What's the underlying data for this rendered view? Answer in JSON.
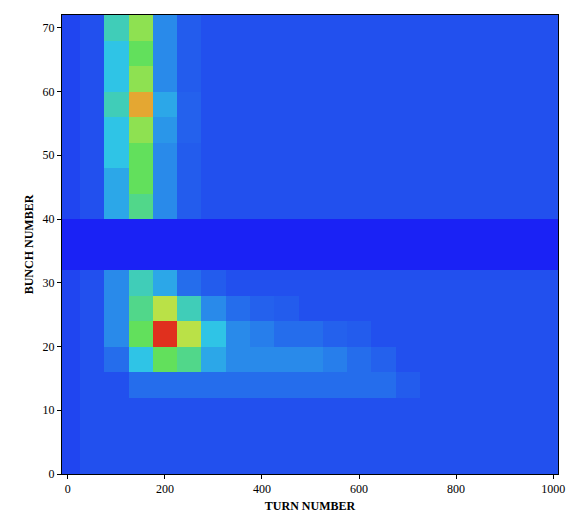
{
  "chart_data": {
    "type": "heatmap",
    "x_label": "TURN NUMBER",
    "y_label": "BUNCH NUMBER",
    "x": [
      0,
      50,
      100,
      150,
      200,
      250,
      300,
      350,
      400,
      450,
      500,
      550,
      600,
      650,
      700,
      750,
      800,
      850,
      900,
      950,
      1000
    ],
    "y": [
      2,
      6,
      10,
      14,
      18,
      22,
      26,
      30,
      34,
      38,
      42,
      46,
      50,
      54,
      58,
      62,
      66,
      70
    ],
    "z": [
      [
        1.5,
        2,
        2,
        2,
        2,
        2,
        2,
        2,
        2,
        2,
        2,
        2,
        2,
        2,
        2,
        2,
        2,
        2,
        2,
        2,
        2
      ],
      [
        1.5,
        2,
        2,
        2,
        2,
        2,
        2,
        2,
        2,
        2,
        2,
        2,
        2,
        2,
        2,
        2,
        2,
        2,
        2,
        2,
        2
      ],
      [
        1.5,
        2,
        2,
        2,
        2,
        2,
        2,
        2,
        2,
        2,
        2,
        2,
        2,
        2,
        2,
        2,
        2,
        2,
        2,
        2,
        2
      ],
      [
        1.5,
        2,
        2,
        2.5,
        2.5,
        2.5,
        2.5,
        2.5,
        2.5,
        2.5,
        2.5,
        2.5,
        2.5,
        2.5,
        2.2,
        2,
        2,
        2,
        2,
        2,
        2
      ],
      [
        1.5,
        2,
        2.5,
        4,
        5.5,
        5,
        3.5,
        3,
        3,
        3,
        3,
        2.8,
        2.5,
        2.3,
        2,
        2,
        2,
        2,
        2,
        2,
        2
      ],
      [
        1.5,
        2,
        3,
        5.5,
        8.5,
        6.5,
        4,
        3,
        2.8,
        2.5,
        2.5,
        2.3,
        2.2,
        2,
        2,
        2,
        2,
        2,
        2,
        2,
        2
      ],
      [
        1.5,
        2,
        3,
        5,
        6.5,
        4.5,
        3,
        2.5,
        2.3,
        2.2,
        2,
        2,
        2,
        2,
        2,
        2,
        2,
        2,
        2,
        2,
        2
      ],
      [
        1.5,
        2,
        3,
        4.5,
        3.5,
        2.5,
        2.2,
        2,
        2,
        2,
        2,
        2,
        2,
        2,
        2,
        2,
        2,
        2,
        2,
        2,
        2
      ],
      [
        0,
        0,
        0,
        0,
        0,
        0,
        0,
        0,
        0,
        0,
        0,
        0,
        0,
        0,
        0,
        0,
        0,
        0,
        0,
        0,
        0
      ],
      [
        0,
        0,
        0,
        0,
        0,
        0,
        0,
        0,
        0,
        0,
        0,
        0,
        0,
        0,
        0,
        0,
        0,
        0,
        0,
        0,
        0
      ],
      [
        1.5,
        2,
        3.5,
        5,
        3,
        2.2,
        2,
        2,
        2,
        2,
        2,
        2,
        2,
        2,
        2,
        2,
        2,
        2,
        2,
        2,
        2
      ],
      [
        1.5,
        2,
        3.5,
        5.5,
        3,
        2.2,
        2,
        2,
        2,
        2,
        2,
        2,
        2,
        2,
        2,
        2,
        2,
        2,
        2,
        2,
        2
      ],
      [
        1.5,
        2,
        4,
        5.5,
        3,
        2.2,
        2,
        2,
        2,
        2,
        2,
        2,
        2,
        2,
        2,
        2,
        2,
        2,
        2,
        2,
        2
      ],
      [
        1.5,
        2,
        4,
        6,
        3.2,
        2.3,
        2,
        2,
        2,
        2,
        2,
        2,
        2,
        2,
        2,
        2,
        2,
        2,
        2,
        2,
        2
      ],
      [
        1.5,
        2,
        4.5,
        7.5,
        3.5,
        2.3,
        2,
        2,
        2,
        2,
        2,
        2,
        2,
        2,
        2,
        2,
        2,
        2,
        2,
        2,
        2
      ],
      [
        1.5,
        2,
        4,
        6,
        3,
        2.2,
        2,
        2,
        2,
        2,
        2,
        2,
        2,
        2,
        2,
        2,
        2,
        2,
        2,
        2,
        2
      ],
      [
        1.5,
        2,
        4,
        5.5,
        3,
        2.2,
        2,
        2,
        2,
        2,
        2,
        2,
        2,
        2,
        2,
        2,
        2,
        2,
        2,
        2,
        2
      ],
      [
        1.5,
        2,
        4.5,
        6,
        3,
        2.2,
        2,
        2,
        2,
        2,
        2,
        2,
        2,
        2,
        2,
        2,
        2,
        2,
        2,
        2,
        2
      ]
    ],
    "zlim": [
      0,
      10
    ],
    "xlim": [
      -12,
      1010
    ],
    "ylim": [
      0,
      72
    ],
    "xticks": [
      0,
      200,
      400,
      600,
      800,
      1000
    ],
    "yticks": [
      0,
      10,
      20,
      30,
      40,
      50,
      60,
      70
    ]
  }
}
